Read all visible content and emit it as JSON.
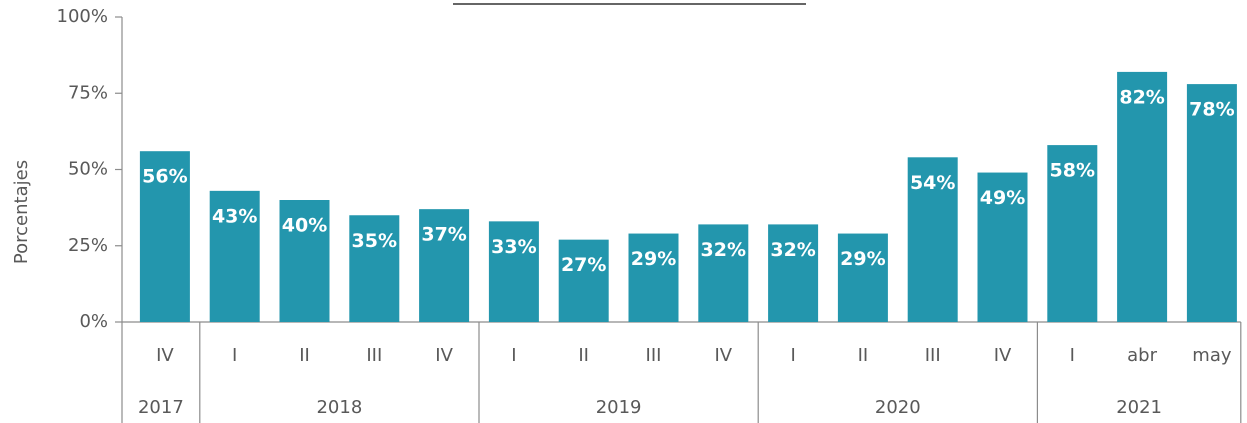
{
  "chart_data": {
    "type": "bar",
    "y_axis_label": "Porcentajes",
    "groups": [
      {
        "name": "2017",
        "categories": [
          "IV"
        ]
      },
      {
        "name": "2018",
        "categories": [
          "I",
          "II",
          "III",
          "IV"
        ]
      },
      {
        "name": "2019",
        "categories": [
          "I",
          "II",
          "III",
          "IV"
        ]
      },
      {
        "name": "2020",
        "categories": [
          "I",
          "II",
          "III",
          "IV"
        ]
      },
      {
        "name": "2021",
        "categories": [
          "I",
          "abr",
          "may"
        ]
      }
    ],
    "values": [
      56,
      43,
      40,
      35,
      37,
      33,
      27,
      29,
      32,
      32,
      29,
      54,
      49,
      58,
      82,
      78
    ],
    "value_labels": [
      "56%",
      "43%",
      "40%",
      "35%",
      "37%",
      "33%",
      "27%",
      "29%",
      "32%",
      "32%",
      "29%",
      "54%",
      "49%",
      "58%",
      "82%",
      "78%"
    ],
    "color": "#2396ad",
    "ylim": [
      0,
      100
    ],
    "yticks": [
      {
        "value": 0,
        "label": "0%"
      },
      {
        "value": 25,
        "label": "25%"
      },
      {
        "value": 50,
        "label": "50%"
      },
      {
        "value": 75,
        "label": "75%"
      },
      {
        "value": 100,
        "label": "100%"
      }
    ],
    "grid": false
  }
}
